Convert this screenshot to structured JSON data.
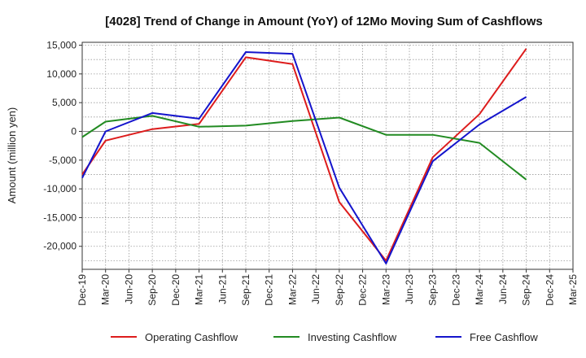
{
  "chart_data": {
    "type": "line",
    "title": "[4028]  Trend of Change in Amount (YoY) of 12Mo Moving Sum of Cashflows",
    "xlabel": "",
    "ylabel": "Amount (million yen)",
    "ylim": [
      -24000,
      15500
    ],
    "yticks": [
      15000,
      10000,
      5000,
      0,
      -5000,
      -10000,
      -15000,
      -20000
    ],
    "ytick_labels": [
      "15,000",
      "10,000",
      "5,000",
      "0",
      "-5,000",
      "-10,000",
      "-15,000",
      "-20,000"
    ],
    "categories": [
      "Dec-19",
      "Mar-20",
      "Jun-20",
      "Sep-20",
      "Dec-20",
      "Mar-21",
      "Jun-21",
      "Sep-21",
      "Dec-21",
      "Mar-22",
      "Jun-22",
      "Sep-22",
      "Dec-22",
      "Mar-23",
      "Jun-23",
      "Sep-23",
      "Dec-23",
      "Mar-24",
      "Jun-24",
      "Sep-24",
      "Dec-24",
      "Mar-25"
    ],
    "grid": true,
    "legend_position": "bottom",
    "series": [
      {
        "name": "Operating Cashflow",
        "color": "#dd1c1c",
        "values": [
          -7500,
          -1600,
          null,
          400,
          null,
          1300,
          null,
          12900,
          null,
          11700,
          null,
          -12300,
          null,
          -22500,
          null,
          -4500,
          null,
          3000,
          null,
          14400,
          null,
          null
        ]
      },
      {
        "name": "Investing Cashflow",
        "color": "#228b22",
        "values": [
          -1000,
          1700,
          null,
          2700,
          null,
          800,
          null,
          1000,
          null,
          1800,
          null,
          2400,
          null,
          -600,
          null,
          -600,
          null,
          -2000,
          null,
          -8400,
          null,
          null
        ]
      },
      {
        "name": "Free Cashflow",
        "color": "#1414cc",
        "values": [
          -8100,
          0,
          null,
          3200,
          null,
          2200,
          null,
          13800,
          null,
          13500,
          null,
          -9800,
          null,
          -23000,
          null,
          -5200,
          null,
          1200,
          null,
          6000,
          null,
          null
        ]
      }
    ]
  }
}
